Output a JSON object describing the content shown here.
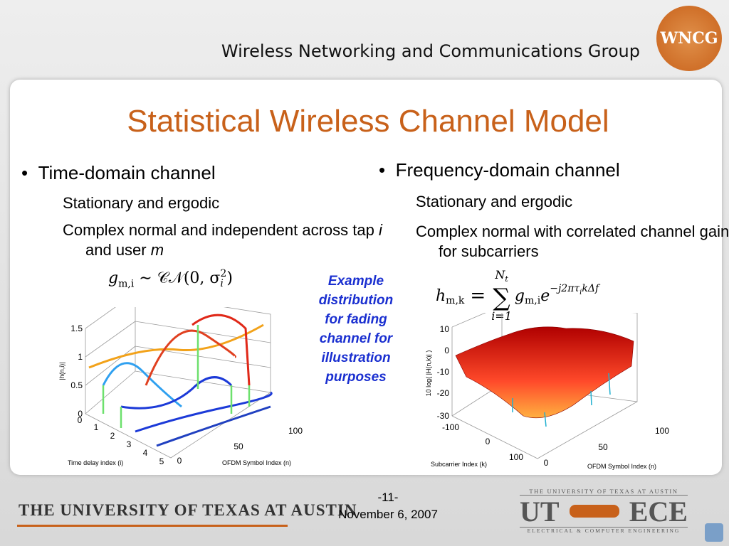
{
  "header": {
    "org": "Wireless Networking and Communications Group",
    "logo": "WNCG"
  },
  "title": "Statistical Wireless Channel Model",
  "left": {
    "bullet": "Time-domain channel",
    "item1": "Stationary and ergodic",
    "item2": [
      "Complex normal and independent across tap ",
      "i",
      " and user ",
      "m"
    ],
    "formula": {
      "g": "g",
      "g_sub": "m,i",
      "rel": "∼ 𝒞𝒩(0, σ",
      "s_sub": "i",
      "s_sup": "2",
      "close": ")"
    }
  },
  "right": {
    "bullet": "Frequency-domain channel",
    "item1": "Stationary and ergodic",
    "item2": "Complex normal with correlated channel gains for subcarriers",
    "formula": {
      "h": "h",
      "h_sub": "m,k",
      "eq": "=",
      "sum": "∑",
      "top": "N",
      "top_sub": "t",
      "bottom": "i=1",
      "g": "g",
      "g_sub": "m,i",
      "e": "e",
      "exp": "−j2πτ",
      "exp_sub": "i",
      "exp_tail": "kΔf"
    }
  },
  "caption": "Example distribution for fading channel for illustration purposes",
  "plot_left": {
    "zticks": [
      "1.5",
      "1",
      "0.5",
      "0"
    ],
    "zlabel": "|h(n,i)|",
    "xticks": [
      "0",
      "1",
      "2",
      "3",
      "4",
      "5"
    ],
    "xlabel": "Time delay index (i)",
    "yticks": [
      "0",
      "50",
      "100"
    ],
    "ylabel": "OFDM Symbol Index (n)"
  },
  "plot_right": {
    "zticks": [
      "10",
      "0",
      "-10",
      "-20",
      "-30"
    ],
    "zlabel": "10 log( |H(n,k)| )",
    "xticks": [
      "-100",
      "0",
      "100"
    ],
    "xlabel": "Subcarrier Index (k)",
    "yticks": [
      "0",
      "50",
      "100"
    ],
    "ylabel": "OFDM Symbol Index (n)"
  },
  "footer": {
    "university": "THE UNIVERSITY OF TEXAS AT AUSTIN",
    "page": "-11-",
    "date": "November 6, 2007",
    "logo_top": "THE UNIVERSITY OF TEXAS AT AUSTIN",
    "logo_ut": "UT",
    "logo_ece": "ECE",
    "logo_bottom": "ELECTRICAL & COMPUTER ENGINEERING"
  }
}
